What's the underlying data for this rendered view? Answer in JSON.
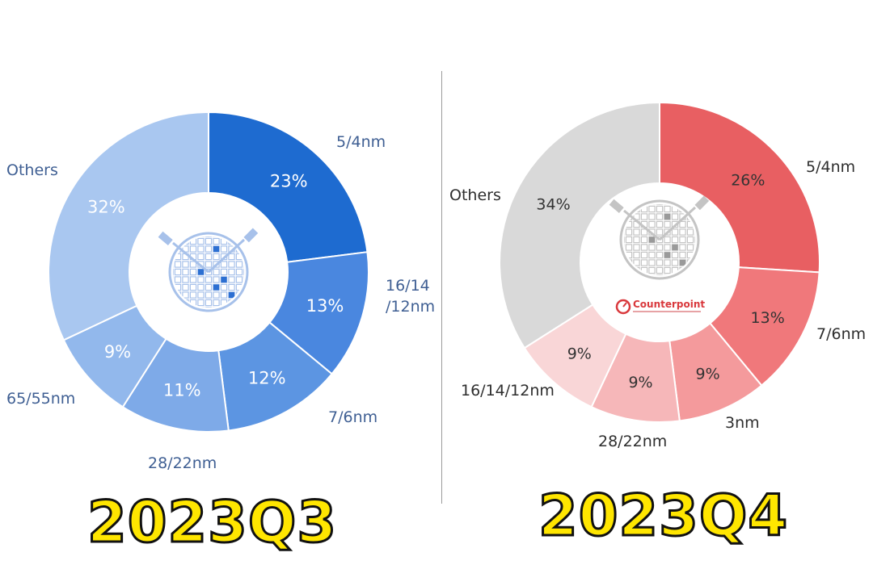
{
  "chart_data": [
    {
      "type": "donut",
      "period": "2023Q3",
      "colors": [
        "#1e6bd0",
        "#4a87df",
        "#5c95e2",
        "#7eaae8",
        "#92b8ec",
        "#a9c7f0"
      ],
      "slices": [
        {
          "label": "5/4nm",
          "value": 23,
          "value_label": "23%"
        },
        {
          "label": "16/14 /12nm",
          "value": 13,
          "value_label": "13%"
        },
        {
          "label": "7/6nm",
          "value": 12,
          "value_label": "12%"
        },
        {
          "label": "28/22nm",
          "value": 11,
          "value_label": "11%"
        },
        {
          "label": "65/55nm",
          "value": 9,
          "value_label": "9%"
        },
        {
          "label": "Others",
          "value": 32,
          "value_label": "32%"
        }
      ]
    },
    {
      "type": "donut",
      "period": "2023Q4",
      "logo_text": "Counterpoint",
      "colors": [
        "#e85f62",
        "#f0787b",
        "#f49a9c",
        "#f6b7b9",
        "#f9d6d7",
        "#d9d9d9"
      ],
      "slices": [
        {
          "label": "5/4nm",
          "value": 26,
          "value_label": "26%"
        },
        {
          "label": "7/6nm",
          "value": 13,
          "value_label": "13%"
        },
        {
          "label": "3nm",
          "value": 9,
          "value_label": "9%"
        },
        {
          "label": "28/22nm",
          "value": 9,
          "value_label": "9%"
        },
        {
          "label": "16/14/12nm",
          "value": 9,
          "value_label": "9%"
        },
        {
          "label": "Others",
          "value": 34,
          "value_label": "34%"
        }
      ]
    }
  ]
}
